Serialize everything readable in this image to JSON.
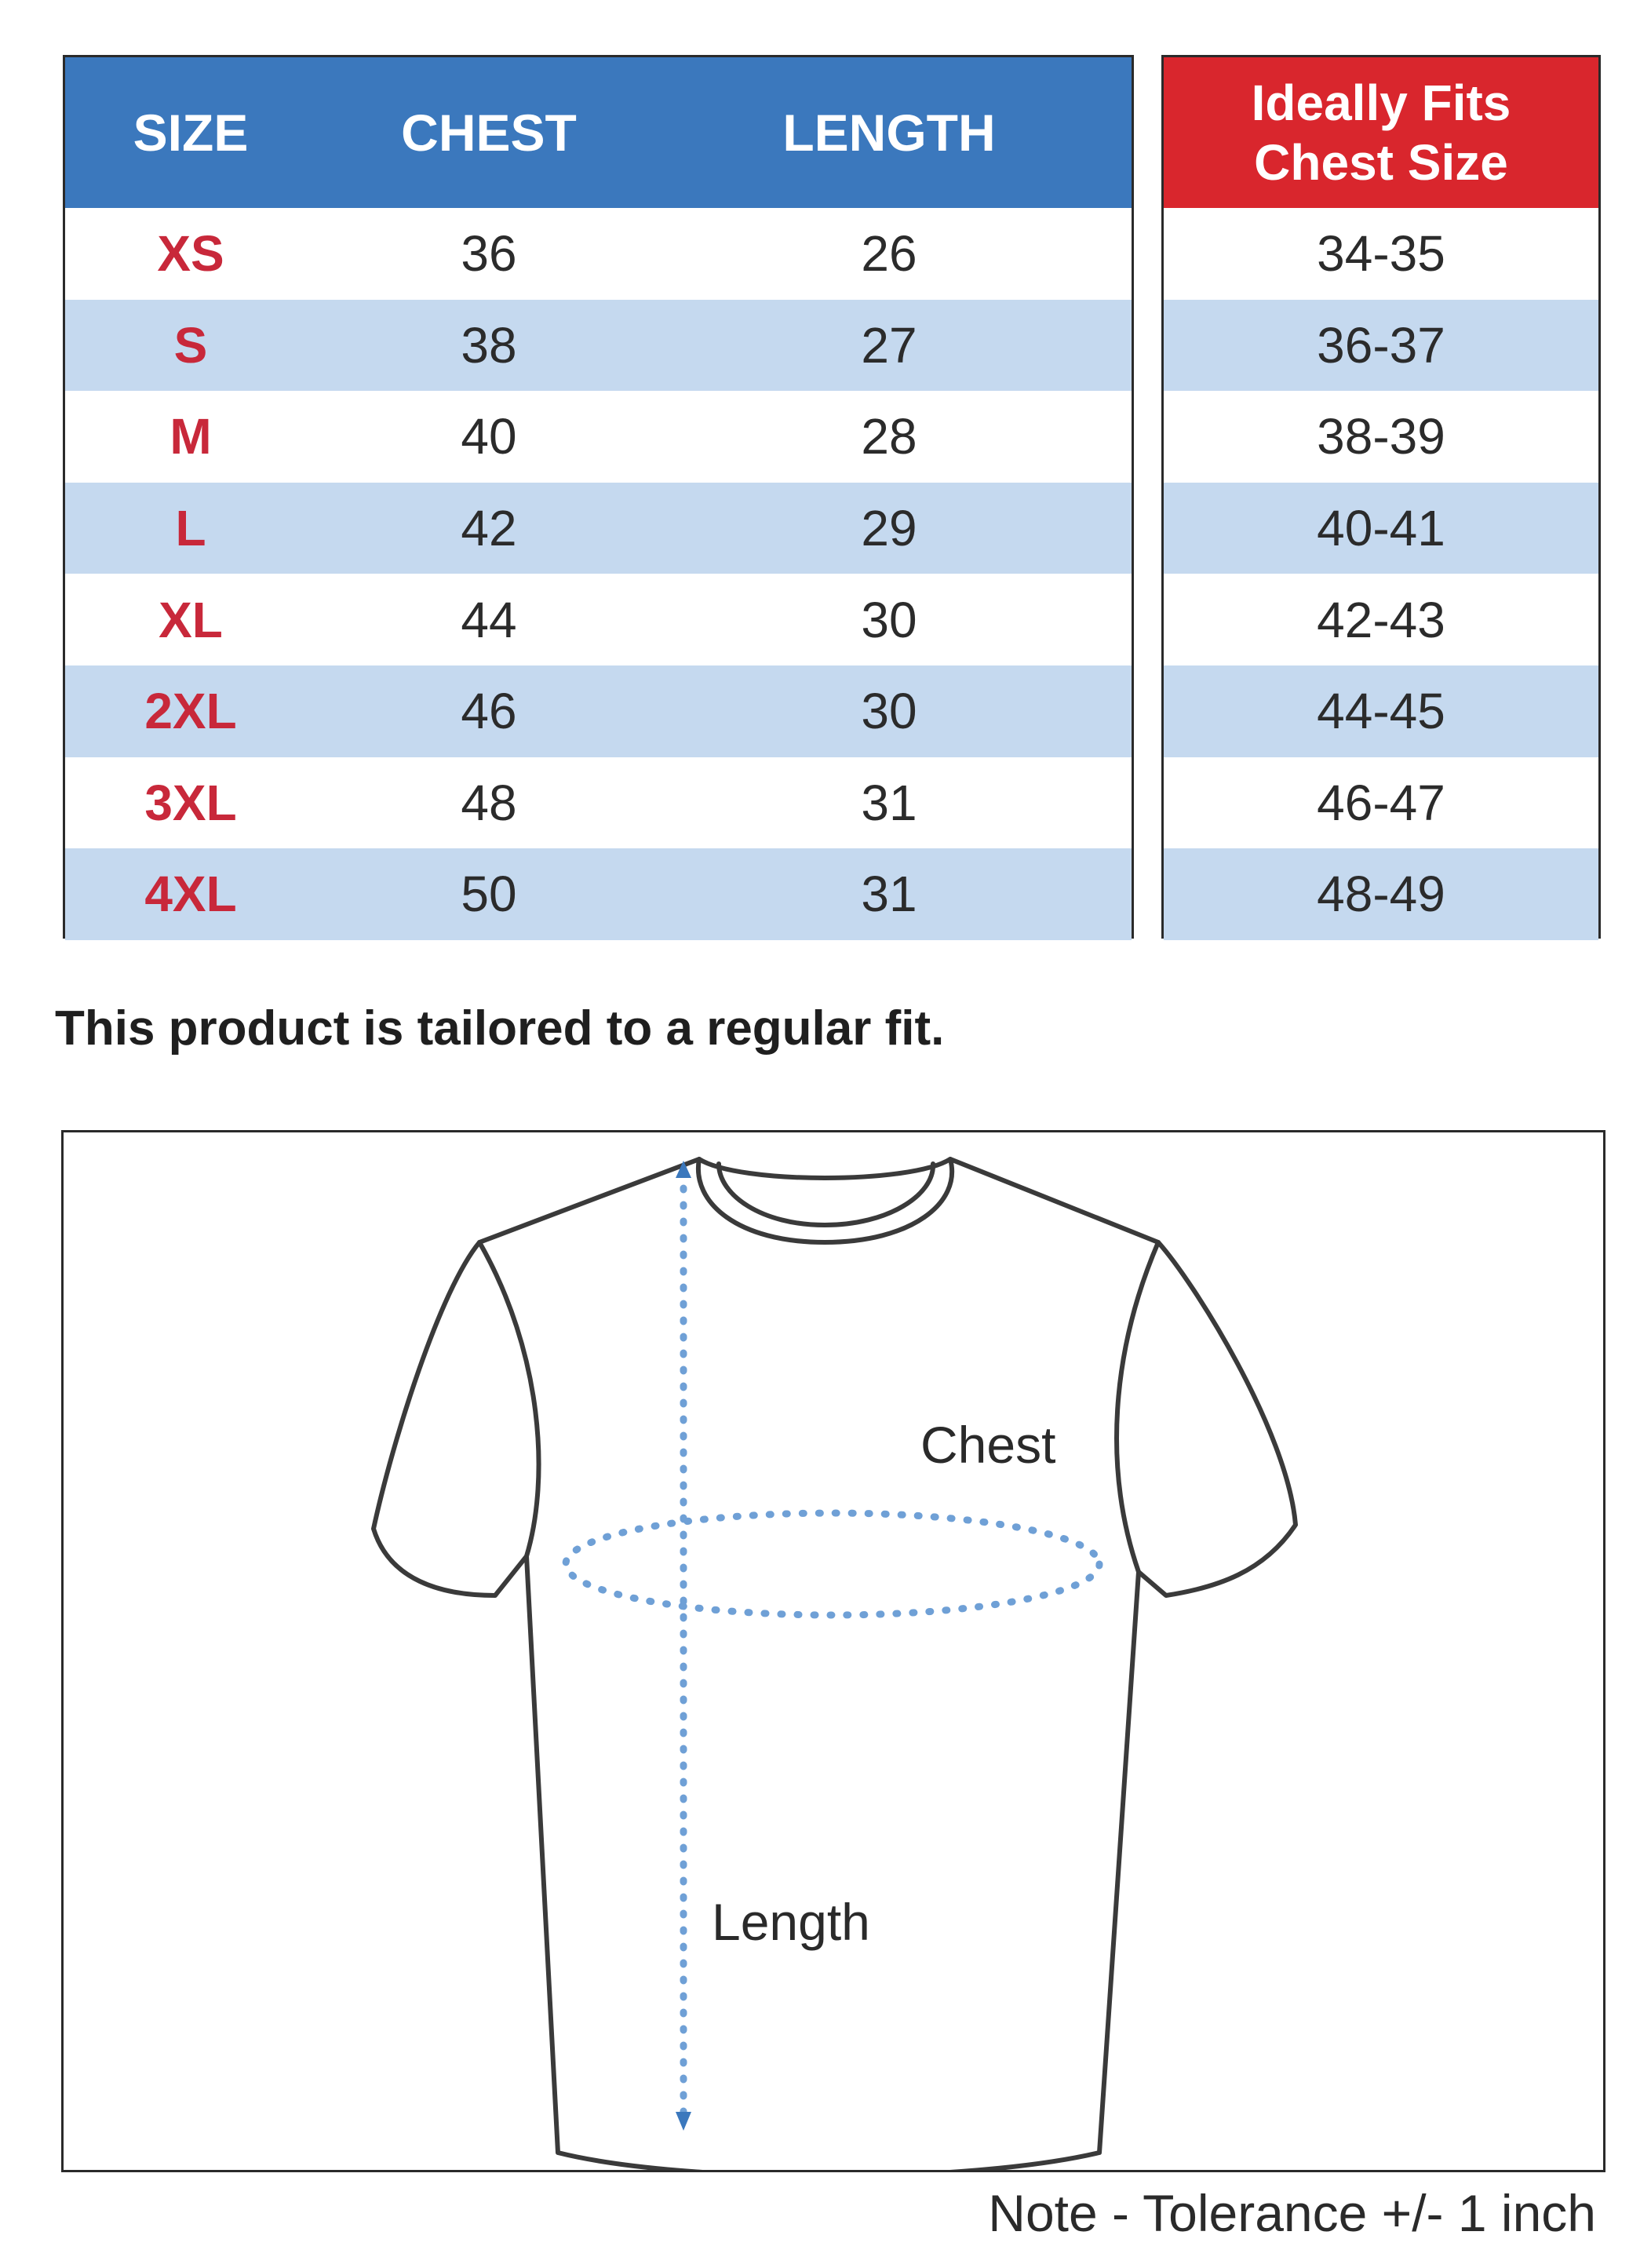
{
  "size_table": {
    "headers": {
      "size": "SIZE",
      "chest": "CHEST",
      "length": "LENGTH"
    },
    "rows": [
      {
        "size": "XS",
        "chest": "36",
        "length": "26"
      },
      {
        "size": "S",
        "chest": "38",
        "length": "27"
      },
      {
        "size": "M",
        "chest": "40",
        "length": "28"
      },
      {
        "size": "L",
        "chest": "42",
        "length": "29"
      },
      {
        "size": "XL",
        "chest": "44",
        "length": "30"
      },
      {
        "size": "2XL",
        "chest": "46",
        "length": "30"
      },
      {
        "size": "3XL",
        "chest": "48",
        "length": "31"
      },
      {
        "size": "4XL",
        "chest": "50",
        "length": "31"
      }
    ]
  },
  "fit_table": {
    "header_line1": "Ideally Fits",
    "header_line2": "Chest Size",
    "values": [
      "34-35",
      "36-37",
      "38-39",
      "40-41",
      "42-43",
      "44-45",
      "46-47",
      "48-49"
    ]
  },
  "fit_note": "This product is tailored to a regular fit.",
  "diagram": {
    "chest_label": "Chest",
    "length_label": "Length"
  },
  "tolerance_note": "Note - Tolerance +/- 1 inch",
  "colors": {
    "header_blue": "#3b78bd",
    "header_red": "#d9262d",
    "size_text_red": "#c8283a",
    "stripe_blue": "#c5d9ef",
    "measure_dots": "#6fa0d6"
  }
}
